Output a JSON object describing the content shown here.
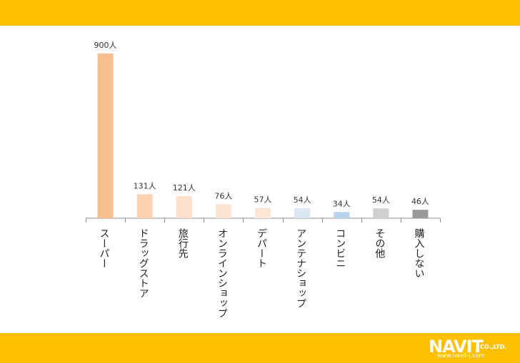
{
  "chart_data": {
    "type": "bar",
    "categories": [
      "スーパー",
      "ドラッグストア",
      "旅行先",
      "オンラインショップ",
      "デパート",
      "アンテナショップ",
      "コンビニ",
      "その他",
      "購入しない"
    ],
    "values": [
      900,
      131,
      121,
      76,
      57,
      54,
      34,
      54,
      46
    ],
    "value_labels": [
      "900人",
      "131人",
      "121人",
      "76人",
      "57人",
      "54人",
      "34人",
      "54人",
      "46人"
    ],
    "ylim": [
      0,
      900
    ],
    "grid": false,
    "legend": "none",
    "colors": [
      "#f8bf90",
      "#fbd2b2",
      "#fde0cc",
      "#fde4d2",
      "#fde8d8",
      "#d9e6f3",
      "#b8d3ee",
      "#cfcfcf",
      "#9a9a9a"
    ]
  },
  "brand": {
    "logo": "NAVIT",
    "suffix": "CO.,LTD.",
    "url": "www.navit-j.com",
    "color": "#ffc000"
  }
}
